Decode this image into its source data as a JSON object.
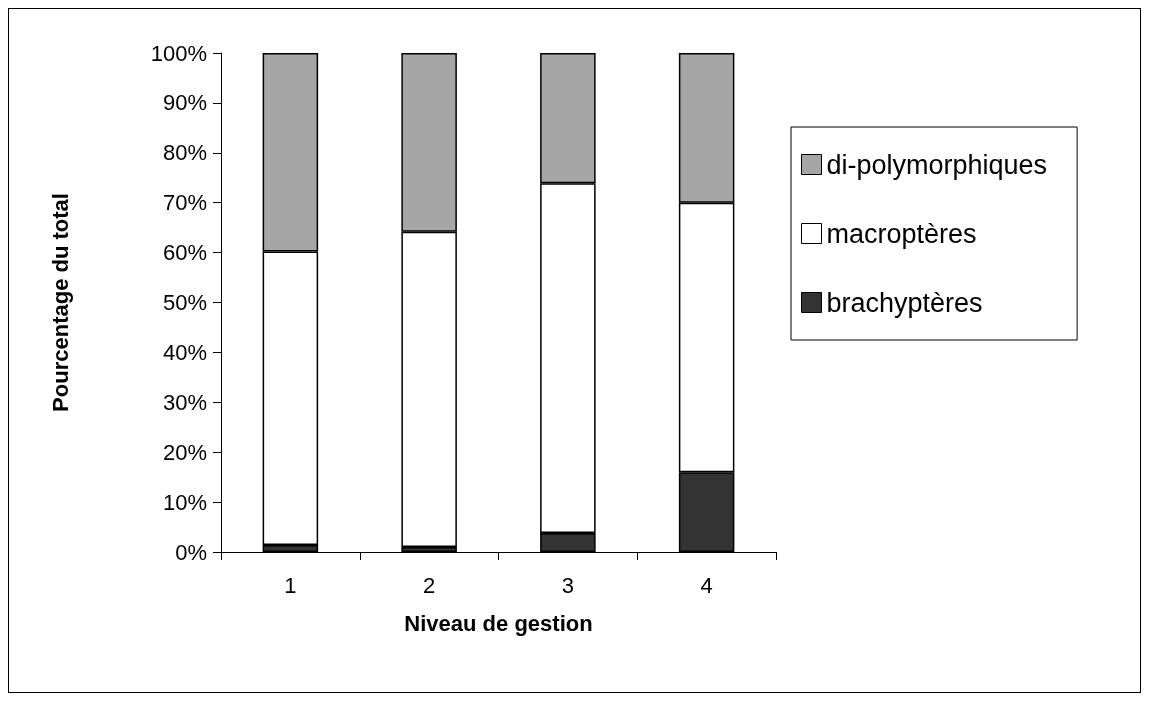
{
  "chart_data": {
    "type": "bar",
    "stacked": true,
    "xlabel": "Niveau de gestion",
    "ylabel": "Pourcentage du total",
    "categories": [
      "1",
      "2",
      "3",
      "4"
    ],
    "series": [
      {
        "name": "brachyptères",
        "color": "#333333",
        "values": [
          1.4,
          1,
          3.8,
          16
        ]
      },
      {
        "name": "macroptères",
        "color": "#ffffff",
        "values": [
          58.8,
          63.2,
          70.1,
          54
        ]
      },
      {
        "name": "di-polymorphiques",
        "color": "#a6a6a6",
        "values": [
          39.8,
          35.8,
          26.1,
          30
        ]
      }
    ],
    "ylim": [
      0,
      100
    ],
    "yticks": [
      {
        "value": 0,
        "label": "0%"
      },
      {
        "value": 10,
        "label": "10%"
      },
      {
        "value": 20,
        "label": "20%"
      },
      {
        "value": 30,
        "label": "30%"
      },
      {
        "value": 40,
        "label": "40%"
      },
      {
        "value": 50,
        "label": "50%"
      },
      {
        "value": 60,
        "label": "60%"
      },
      {
        "value": 70,
        "label": "70%"
      },
      {
        "value": 80,
        "label": "80%"
      },
      {
        "value": 90,
        "label": "90%"
      },
      {
        "value": 100,
        "label": "100%"
      }
    ],
    "grid": false,
    "legend": "right"
  }
}
